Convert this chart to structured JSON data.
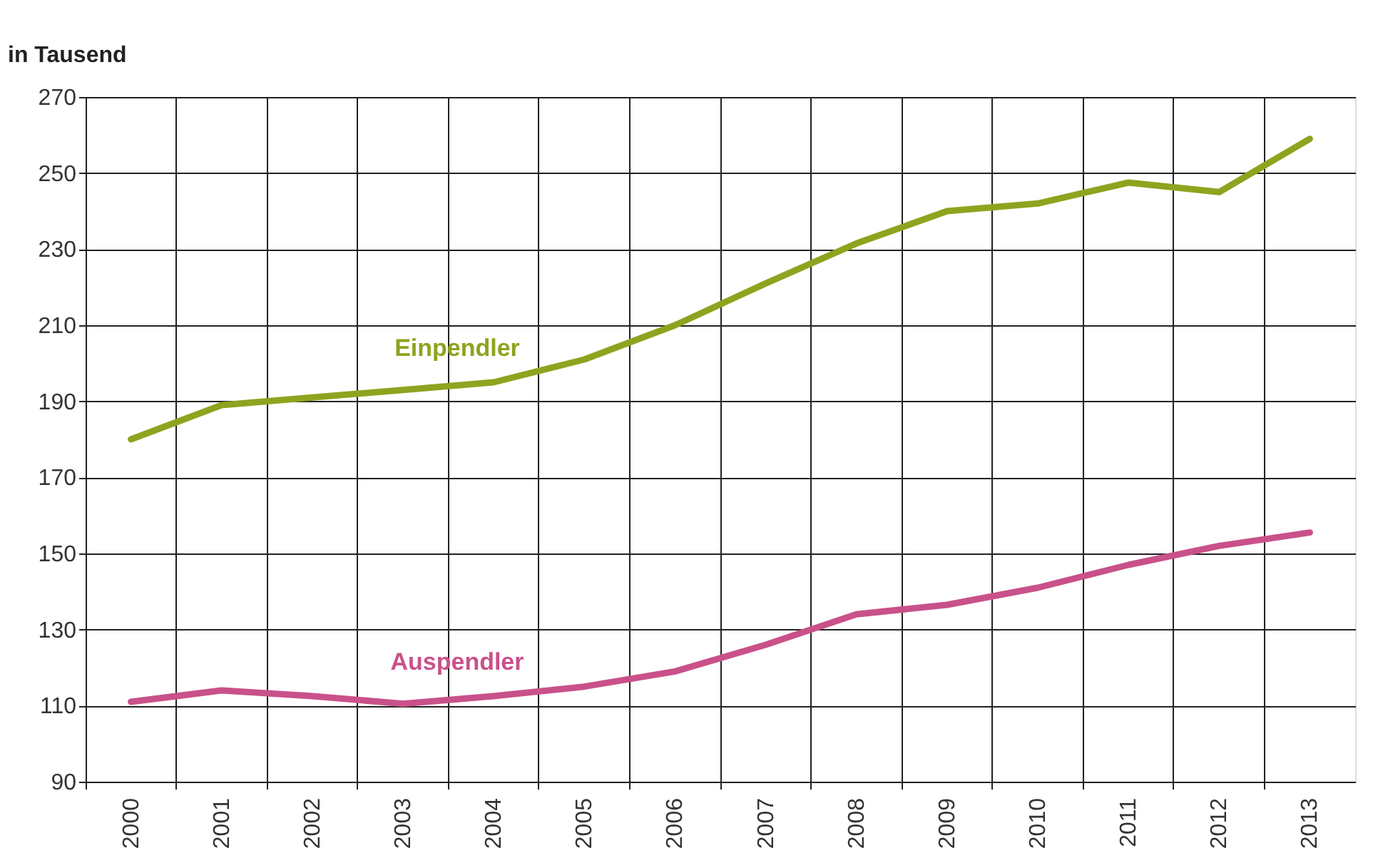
{
  "chart_data": {
    "type": "line",
    "ylabel": "in Tausend",
    "categories": [
      "2000",
      "2001",
      "2002",
      "2003",
      "2004",
      "2005",
      "2006",
      "2007",
      "2008",
      "2009",
      "2010",
      "2011",
      "2012",
      "2013"
    ],
    "series": [
      {
        "name": "Einpendler",
        "color": "#8fa31f",
        "values": [
          180,
          189,
          191,
          193,
          195,
          201,
          210,
          221,
          231.5,
          240,
          242,
          247.5,
          245,
          259
        ]
      },
      {
        "name": "Auspendler",
        "color": "#c9518a",
        "values": [
          111,
          114,
          112.5,
          110.5,
          112.5,
          115,
          119,
          126,
          134,
          136.5,
          141,
          147,
          152,
          155.5
        ]
      }
    ],
    "ylim": [
      90,
      270
    ],
    "yticks": [
      90,
      110,
      130,
      150,
      170,
      190,
      210,
      230,
      250,
      270
    ],
    "grid": true,
    "legend": false,
    "marker": "none",
    "line_style": "solid"
  }
}
